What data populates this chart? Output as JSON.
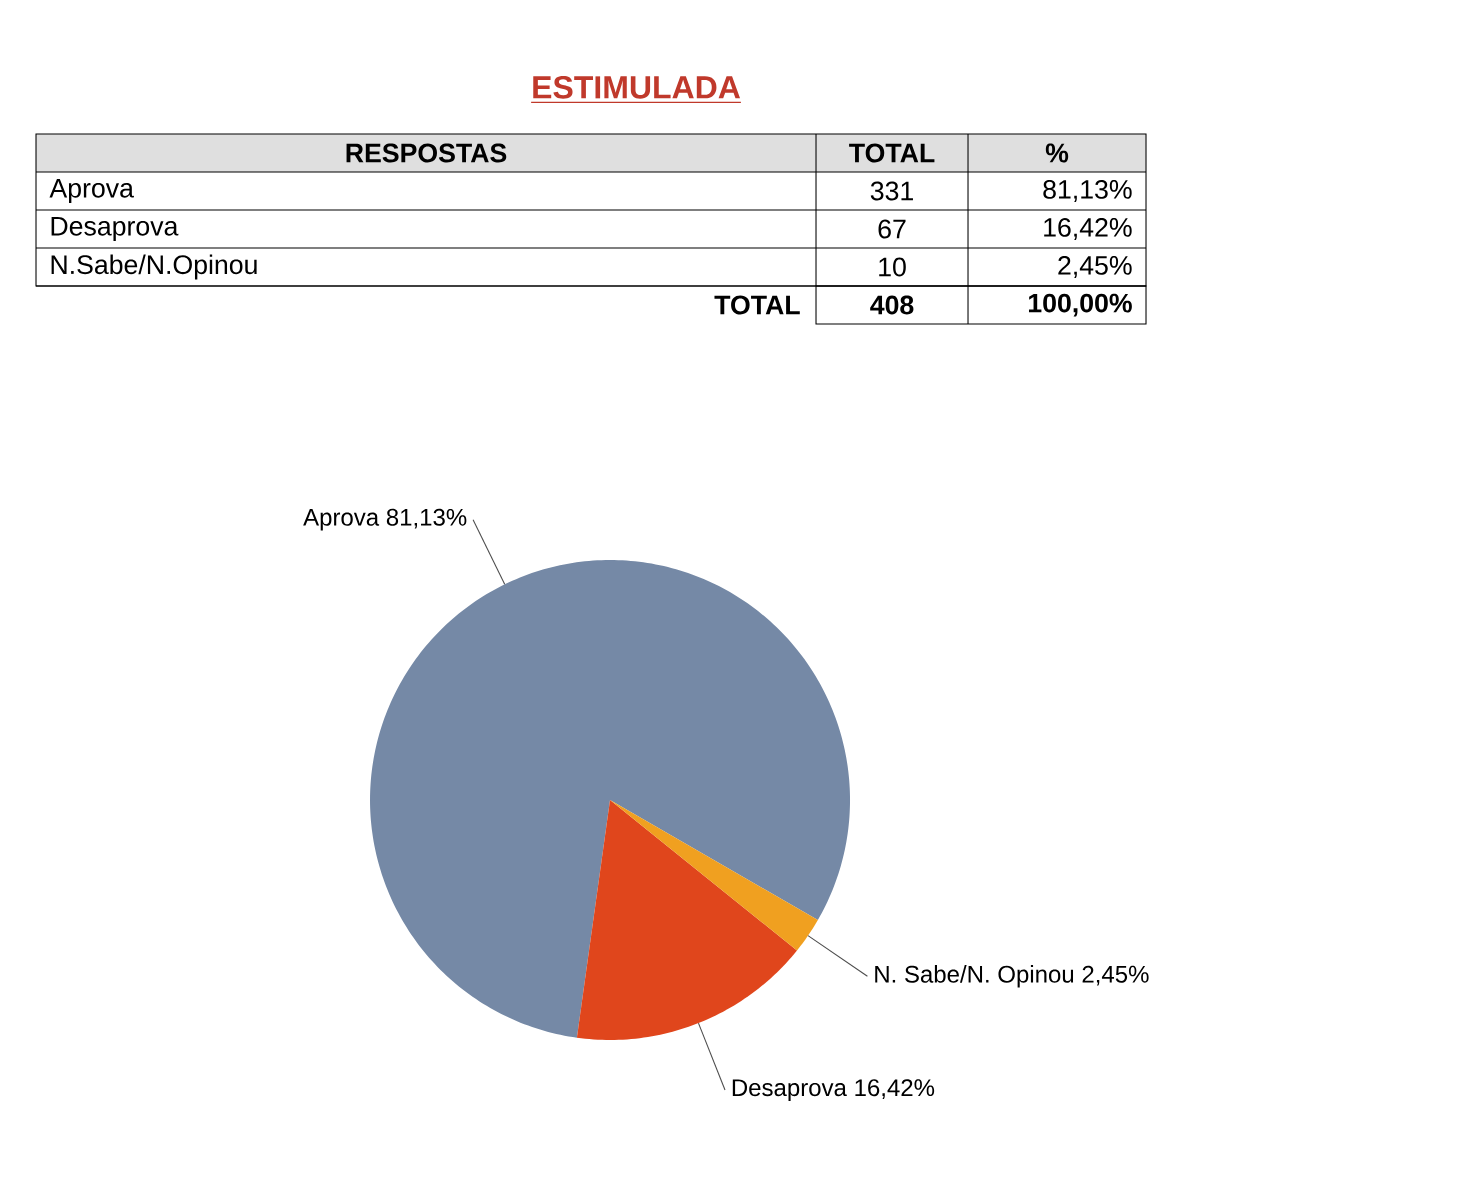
{
  "chart_data": [
    {
      "type": "other",
      "title": "ESTIMULADA",
      "categories": [
        "Aprova",
        "Desaprova",
        "N.Sabe/N.Opinou"
      ],
      "values": [
        331,
        67,
        10
      ],
      "data_labels": true,
      "annotations": [
        "RESPOSTAS",
        "TOTAL",
        "%",
        "81,13%",
        "16,42%",
        "2,45%",
        "TOTAL",
        "408",
        "100,00%"
      ],
      "color": "#c0392b"
    },
    {
      "type": "pie",
      "categories": [
        "Aprova",
        "Desaprova",
        "N. Sabe/N. Opinou"
      ],
      "values": [
        81.13,
        16.42,
        2.45
      ],
      "value_labels": [
        "81,13%",
        "16,42%",
        "2,45%"
      ],
      "colors": [
        "#7589a6",
        "#e0461c",
        "#f0a020"
      ]
    }
  ]
}
